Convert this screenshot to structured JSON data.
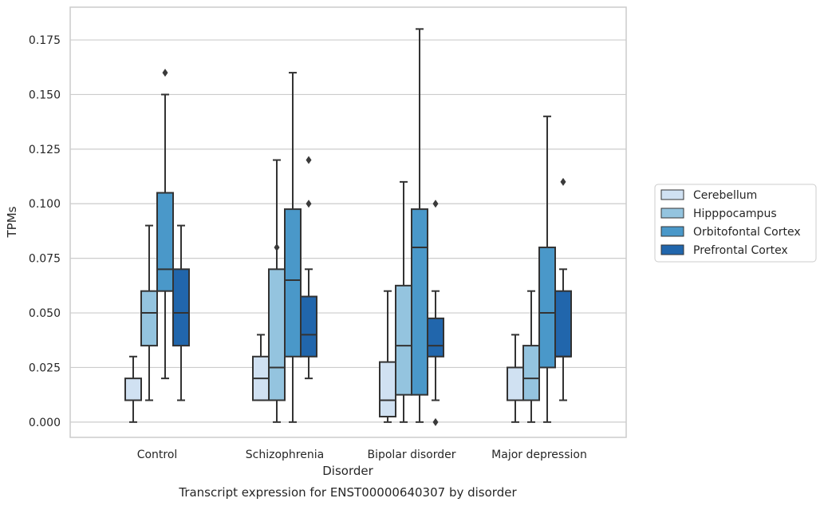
{
  "caption": "Transcript expression for ENST00000640307 by disorder",
  "colors": {
    "grid": "#cccccc",
    "frame": "#cccccc",
    "line": "#333333",
    "series": [
      "#d0e1f2",
      "#94c4df",
      "#4a98c9",
      "#2166ac"
    ]
  },
  "chart_data": {
    "type": "box",
    "xlabel": "Disorder",
    "ylabel": "TPMs",
    "ylim": [
      -0.007,
      0.19
    ],
    "yticks": [
      "0.000",
      "0.025",
      "0.050",
      "0.075",
      "0.100",
      "0.125",
      "0.150",
      "0.175"
    ],
    "grid": true,
    "legend_position": "right",
    "categories": [
      "Control",
      "Schizophrenia",
      "Bipolar disorder",
      "Major depression"
    ],
    "series": [
      {
        "name": "Cerebellum",
        "boxes": [
          {
            "min": 0.0,
            "q1": 0.01,
            "median": 0.01,
            "q3": 0.02,
            "max": 0.03,
            "outliers": []
          },
          {
            "min": 0.01,
            "q1": 0.01,
            "median": 0.02,
            "q3": 0.03,
            "max": 0.04,
            "outliers": []
          },
          {
            "min": 0.0,
            "q1": 0.0025,
            "median": 0.01,
            "q3": 0.0275,
            "max": 0.06,
            "outliers": []
          },
          {
            "min": 0.0,
            "q1": 0.01,
            "median": 0.01,
            "q3": 0.025,
            "max": 0.04,
            "outliers": []
          }
        ]
      },
      {
        "name": "Hipppocampus",
        "boxes": [
          {
            "min": 0.01,
            "q1": 0.035,
            "median": 0.05,
            "q3": 0.06,
            "max": 0.09,
            "outliers": []
          },
          {
            "min": 0.0,
            "q1": 0.01,
            "median": 0.025,
            "q3": 0.07,
            "max": 0.12,
            "outliers": [
              0.08
            ]
          },
          {
            "min": 0.0,
            "q1": 0.0125,
            "median": 0.035,
            "q3": 0.0625,
            "max": 0.11,
            "outliers": []
          },
          {
            "min": 0.0,
            "q1": 0.01,
            "median": 0.02,
            "q3": 0.035,
            "max": 0.06,
            "outliers": []
          }
        ]
      },
      {
        "name": "Orbitofontal Cortex",
        "boxes": [
          {
            "min": 0.02,
            "q1": 0.06,
            "median": 0.07,
            "q3": 0.105,
            "max": 0.15,
            "outliers": [
              0.16
            ]
          },
          {
            "min": 0.0,
            "q1": 0.03,
            "median": 0.065,
            "q3": 0.0975,
            "max": 0.16,
            "outliers": []
          },
          {
            "min": 0.0,
            "q1": 0.0125,
            "median": 0.08,
            "q3": 0.0975,
            "max": 0.18,
            "outliers": []
          },
          {
            "min": 0.0,
            "q1": 0.025,
            "median": 0.05,
            "q3": 0.08,
            "max": 0.14,
            "outliers": []
          }
        ]
      },
      {
        "name": "Prefrontal Cortex",
        "boxes": [
          {
            "min": 0.01,
            "q1": 0.035,
            "median": 0.05,
            "q3": 0.07,
            "max": 0.09,
            "outliers": []
          },
          {
            "min": 0.02,
            "q1": 0.03,
            "median": 0.04,
            "q3": 0.0575,
            "max": 0.07,
            "outliers": [
              0.1,
              0.12
            ]
          },
          {
            "min": 0.01,
            "q1": 0.03,
            "median": 0.035,
            "q3": 0.0475,
            "max": 0.06,
            "outliers": [
              0.0,
              0.1
            ]
          },
          {
            "min": 0.01,
            "q1": 0.03,
            "median": 0.03,
            "q3": 0.06,
            "max": 0.07,
            "outliers": [
              0.11
            ]
          }
        ]
      }
    ]
  }
}
